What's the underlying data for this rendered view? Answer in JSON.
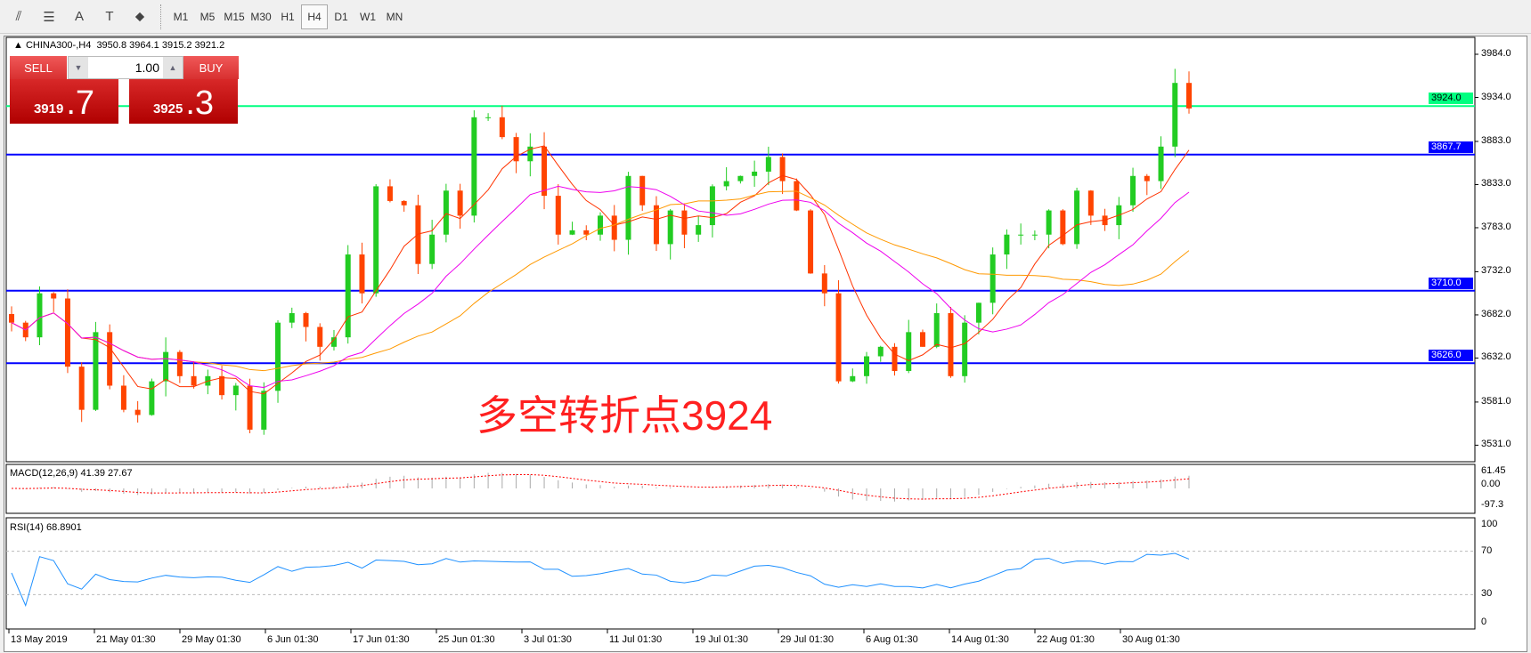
{
  "toolbar": {
    "icons": [
      "elliott-wave-icon",
      "fibonacci-icon",
      "text-icon",
      "text-label-icon",
      "arrows-icon"
    ],
    "icon_glyphs": [
      "⫽",
      "☰",
      "A",
      "T",
      "⬥"
    ],
    "timeframes": [
      "M1",
      "M5",
      "M15",
      "M30",
      "H1",
      "H4",
      "D1",
      "W1",
      "MN"
    ],
    "active_timeframe": "H4"
  },
  "header": {
    "symbol": "CHINA300-,H4",
    "ohlc": "3950.8 3964.1 3915.2 3921.2"
  },
  "trade": {
    "sell_label": "SELL",
    "buy_label": "BUY",
    "lot": "1.00",
    "sell_main": "3919",
    "sell_frac": ".7",
    "buy_main": "3925",
    "buy_frac": ".3"
  },
  "annotation": "多空转折点3924",
  "price_axis": [
    "3984.0",
    "3934.0",
    "3883.0",
    "3833.0",
    "3783.0",
    "3732.0",
    "3682.0",
    "3632.0",
    "3581.0",
    "3531.0"
  ],
  "hlines": [
    {
      "label": "3924.0",
      "price": 3924.0,
      "color": "#00ff80"
    },
    {
      "label": "3867.7",
      "price": 3867.7,
      "color": "#0000ff"
    },
    {
      "label": "3710.0",
      "price": 3710.0,
      "color": "#0000ff"
    },
    {
      "label": "3626.0",
      "price": 3626.0,
      "color": "#0000ff"
    }
  ],
  "macd": {
    "label": "MACD(12,26,9) 41.39 27.67",
    "axis": [
      "61.45",
      "0.00",
      "-97.3"
    ]
  },
  "rsi": {
    "label": "RSI(14) 68.8901",
    "axis": [
      "100",
      "70",
      "30",
      "0"
    ]
  },
  "time_axis": [
    "13 May 2019",
    "21 May 01:30",
    "29 May 01:30",
    "6 Jun 01:30",
    "17 Jun 01:30",
    "25 Jun 01:30",
    "3 Jul 01:30",
    "11 Jul 01:30",
    "19 Jul 01:30",
    "29 Jul 01:30",
    "6 Aug 01:30",
    "14 Aug 01:30",
    "22 Aug 01:30",
    "30 Aug 01:30"
  ],
  "colors": {
    "bull": "#22cc22",
    "bear": "#ff4400",
    "ma_fast": "#ff3300",
    "ma_mid": "#ff9900",
    "ma_slow": "#ee00ee",
    "rsi": "#1e90ff",
    "macd_signal": "#ff0000"
  },
  "chart_data": {
    "type": "candlestick",
    "last_candle": {
      "open": 3950.8,
      "high": 3964.1,
      "low": 3915.2,
      "close": 3921.2
    },
    "closes": [
      3673,
      3656,
      3707,
      3701,
      3622,
      3572,
      3662,
      3600,
      3572,
      3566,
      3605,
      3639,
      3611,
      3600,
      3611,
      3589,
      3600,
      3549,
      3594,
      3673,
      3684,
      3668,
      3645,
      3656,
      3752,
      3707,
      3831,
      3814,
      3809,
      3741,
      3775,
      3826,
      3797,
      3911,
      3911,
      3888,
      3860,
      3877,
      3820,
      3775,
      3780,
      3775,
      3797,
      3769,
      3843,
      3809,
      3764,
      3803,
      3775,
      3786,
      3831,
      3837,
      3843,
      3848,
      3865,
      3837,
      3803,
      3730,
      3707,
      3605,
      3611,
      3634,
      3645,
      3617,
      3662,
      3645,
      3684,
      3611,
      3673,
      3696,
      3752,
      3775,
      3775,
      3775,
      3803,
      3764,
      3826,
      3797,
      3786,
      3809,
      3843,
      3837,
      3877,
      3950.8,
      3921.2
    ],
    "ylim": [
      3510,
      3995
    ]
  }
}
